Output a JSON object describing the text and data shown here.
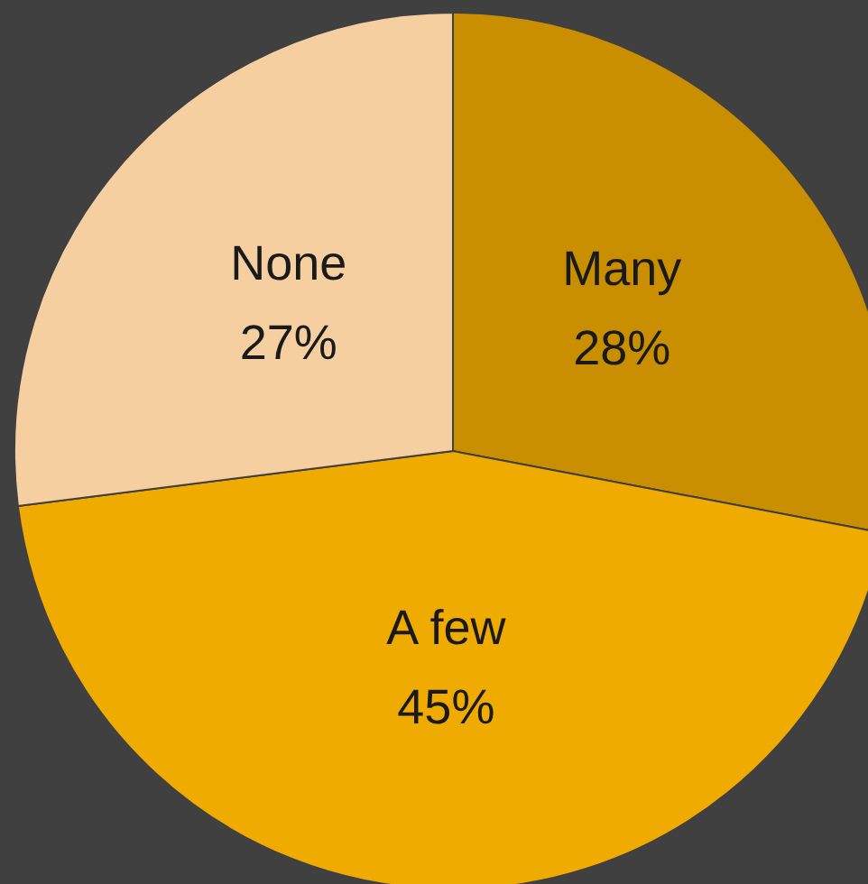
{
  "chart_data": {
    "type": "pie",
    "categories": [
      "Many",
      "A few",
      "None"
    ],
    "values": [
      28,
      45,
      27
    ],
    "colors": [
      "#c98f00",
      "#f0ab00",
      "#f5cfa0"
    ],
    "value_labels": [
      "28%",
      "45%",
      "27%"
    ],
    "legend": false
  }
}
